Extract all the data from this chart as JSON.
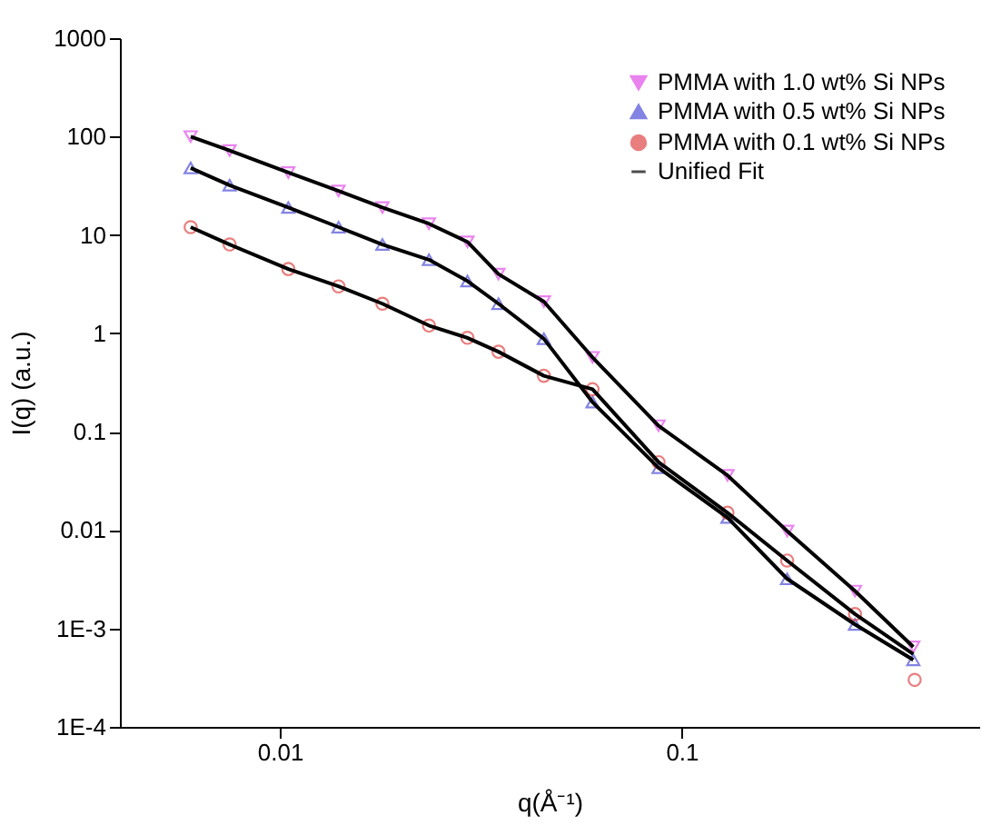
{
  "chart_data": {
    "type": "scatter",
    "xlabel": "q(Å⁻¹)",
    "ylabel": "I(q) (a.u.)",
    "log": "xy",
    "grid": false,
    "legend": "top right",
    "xlim": [
      0.004,
      0.55
    ],
    "xticks": [
      0.01,
      0.1
    ],
    "ylim": [
      0.0001,
      1000
    ],
    "yticks": [
      1000,
      100,
      10,
      1,
      0.1,
      0.01,
      {
        "value": 0.001,
        "label": "1E-3"
      },
      {
        "value": 0.0001,
        "label": "1E-4"
      }
    ],
    "series": [
      {
        "name": "PMMA with 1.0 wt% Si NPs",
        "color": "#e050e8",
        "marker": "triangle-down",
        "x": [
          0.006,
          0.0075,
          0.0105,
          0.014,
          0.018,
          0.0235,
          0.0293,
          0.035,
          0.0454,
          0.06,
          0.0876,
          0.13,
          0.183,
          0.27,
          0.377
        ],
        "values": [
          100,
          72,
          43,
          28,
          19,
          13,
          8.5,
          4,
          2.1,
          0.57,
          0.115,
          0.036,
          0.0098,
          0.0024,
          0.00065
        ]
      },
      {
        "name": "PMMA with 0.5 wt% Si NPs",
        "color": "#5050d8",
        "marker": "triangle-up",
        "x": [
          0.006,
          0.0075,
          0.0105,
          0.014,
          0.018,
          0.0235,
          0.0293,
          0.035,
          0.0454,
          0.06,
          0.0876,
          0.13,
          0.183,
          0.27,
          0.377
        ],
        "values": [
          48,
          32,
          19,
          12,
          8,
          5.6,
          3.4,
          2,
          0.88,
          0.2,
          0.043,
          0.0134,
          0.0032,
          0.0011,
          0.00048
        ]
      },
      {
        "name": "PMMA with 0.1 wt% Si NPs",
        "color": "#e04848",
        "marker": "circle",
        "x": [
          0.006,
          0.0075,
          0.0105,
          0.014,
          0.018,
          0.0235,
          0.0293,
          0.035,
          0.0454,
          0.06,
          0.0876,
          0.13,
          0.183,
          0.27,
          0.38
        ],
        "values": [
          12,
          8,
          4.5,
          3,
          2,
          1.2,
          0.9,
          0.65,
          0.37,
          0.27,
          0.049,
          0.015,
          0.0049,
          0.0014,
          0.0003
        ]
      },
      {
        "name": "Unified Fit",
        "type": "line",
        "color": "#000000",
        "x": [
          0.006,
          0.0075,
          0.0105,
          0.014,
          0.018,
          0.0235,
          0.0293,
          0.035,
          0.0454,
          0.06,
          0.0876,
          0.13,
          0.183,
          0.27,
          0.377
        ],
        "values": [
          100,
          72,
          43,
          28,
          19,
          13,
          8.5,
          4,
          2.1,
          0.57,
          0.115,
          0.036,
          0.0098,
          0.0024,
          0.00065
        ]
      },
      {
        "type": "line",
        "color": "#000000",
        "x": [
          0.006,
          0.0075,
          0.0105,
          0.014,
          0.018,
          0.0235,
          0.0293,
          0.035,
          0.0454,
          0.06,
          0.0876,
          0.13,
          0.183,
          0.27,
          0.377
        ],
        "values": [
          48,
          32,
          19,
          12,
          8,
          5.6,
          3.4,
          2,
          0.88,
          0.2,
          0.043,
          0.0134,
          0.0032,
          0.0011,
          0.00048
        ]
      },
      {
        "type": "line",
        "color": "#000000",
        "x": [
          0.006,
          0.0075,
          0.0105,
          0.014,
          0.018,
          0.0235,
          0.0293,
          0.035,
          0.0454,
          0.06,
          0.0876,
          0.13,
          0.183,
          0.27,
          0.377
        ],
        "values": [
          12,
          8,
          4.5,
          3,
          2,
          1.2,
          0.9,
          0.65,
          0.37,
          0.27,
          0.049,
          0.015,
          0.0049,
          0.0014,
          0.00055
        ]
      }
    ]
  }
}
